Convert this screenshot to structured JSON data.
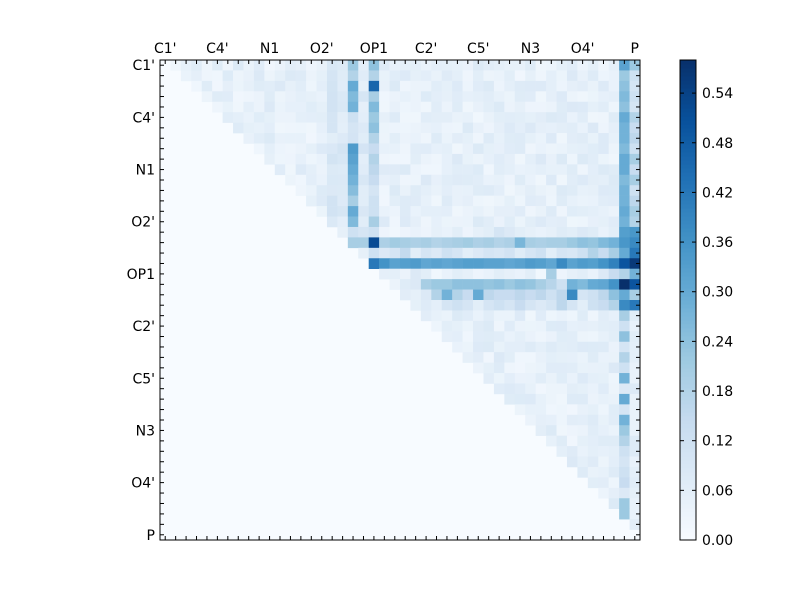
{
  "chart_data": {
    "type": "heatmap",
    "title": "",
    "xlabel": "",
    "ylabel": "",
    "size": 46,
    "x_tick_labels": [
      "C1'",
      "C4'",
      "N1",
      "O2'",
      "OP1",
      "C2'",
      "C5'",
      "N3",
      "O4'",
      "P"
    ],
    "x_tick_indices": [
      0,
      5,
      10,
      15,
      20,
      25,
      30,
      35,
      40,
      45
    ],
    "y_tick_labels": [
      "C1'",
      "C4'",
      "N1",
      "O2'",
      "OP1",
      "C2'",
      "C5'",
      "N3",
      "O4'",
      "P"
    ],
    "y_tick_indices": [
      0,
      5,
      10,
      15,
      20,
      25,
      30,
      35,
      40,
      45
    ],
    "colorbar": {
      "min": 0.0,
      "max": 0.58,
      "tick_labels": [
        "0.00",
        "0.06",
        "0.12",
        "0.18",
        "0.24",
        "0.30",
        "0.36",
        "0.42",
        "0.48",
        "0.54"
      ],
      "tick_values": [
        0.0,
        0.06,
        0.12,
        0.18,
        0.24,
        0.3,
        0.36,
        0.42,
        0.48,
        0.54
      ]
    },
    "colormap": [
      "#f7fbff",
      "#deebf7",
      "#c6dbef",
      "#9ecae1",
      "#6baed6",
      "#4292c6",
      "#2171b5",
      "#08519c",
      "#08306b"
    ],
    "upper_triangular": true,
    "dense_rows": [
      {
        "row": 16,
        "values": [
          0.12,
          0.04,
          0.05,
          0.02,
          0.1,
          0.04,
          0.03,
          0.02,
          0.03,
          0.04,
          0.03,
          0.05,
          0.04,
          0.06,
          0.03,
          0.05,
          0.06,
          0.1,
          0.08,
          0.06,
          0.05,
          0.04,
          0.05,
          0.07,
          0.06,
          0.08,
          0.07,
          0.04,
          0.06,
          0.33,
          0.35
        ]
      },
      {
        "row": 17,
        "values": [
          0.2,
          0.22,
          0.2,
          0.2,
          0.2,
          0.19,
          0.21,
          0.2,
          0.19,
          0.2,
          0.18,
          0.19,
          0.2,
          0.21,
          0.19,
          0.2,
          0.18,
          0.19,
          0.27,
          0.2,
          0.19,
          0.2,
          0.2,
          0.22,
          0.24,
          0.23,
          0.26,
          0.28,
          0.35,
          0.38
        ]
      },
      {
        "row": 18,
        "values": [
          0.05,
          0.12,
          0.08,
          0.1,
          0.15,
          0.06,
          0.1,
          0.08,
          0.12,
          0.1,
          0.06,
          0.08,
          0.1,
          0.09,
          0.11,
          0.07,
          0.1,
          0.12,
          0.06,
          0.1,
          0.09,
          0.12,
          0.18,
          0.14,
          0.2,
          0.3,
          0.42
        ]
      },
      {
        "row": 19,
        "values": [
          0.36,
          0.32,
          0.33,
          0.34,
          0.31,
          0.32,
          0.31,
          0.32,
          0.33,
          0.33,
          0.32,
          0.32,
          0.31,
          0.32,
          0.34,
          0.33,
          0.31,
          0.38,
          0.32,
          0.34,
          0.33,
          0.36,
          0.4,
          0.5,
          0.56
        ]
      },
      {
        "row": 20,
        "values": [
          0.08,
          0.06,
          0.02,
          0.04,
          0.06,
          0.05,
          0.03,
          0.04,
          0.06,
          0.05,
          0.04,
          0.06,
          0.02,
          0.2,
          0.03,
          0.05,
          0.06,
          0.04,
          0.08,
          0.14,
          0.18,
          0.28
        ]
      },
      {
        "row": 21,
        "values": [
          0.2,
          0.22,
          0.22,
          0.24,
          0.24,
          0.24,
          0.23,
          0.24,
          0.22,
          0.24,
          0.23,
          0.2,
          0.17,
          0.12,
          0.28,
          0.26,
          0.3,
          0.31,
          0.36,
          0.58,
          0.5
        ]
      },
      {
        "row": 22,
        "values": [
          0.18,
          0.28,
          0.18,
          0.14,
          0.3,
          0.16,
          0.14,
          0.14,
          0.16,
          0.14,
          0.16,
          0.12,
          0.16,
          0.38,
          0.1,
          0.12,
          0.16,
          0.24,
          0.3,
          0.2
        ]
      },
      {
        "row": 23,
        "values": [
          0.1,
          0.12,
          0.1,
          0.06,
          0.1,
          0.12,
          0.1,
          0.14,
          0.1,
          0.08,
          0.1,
          0.16,
          0.1,
          0.06,
          0.12,
          0.14,
          0.18,
          0.22,
          0.42
        ]
      }
    ],
    "strong_column_values": [
      {
        "col": 44,
        "values": [
          0.32,
          0.22,
          0.24,
          0.26,
          0.24,
          0.3,
          0.28,
          0.28,
          0.26,
          0.3,
          0.3,
          0.26,
          0.28,
          0.28,
          0.3,
          0.28,
          0.33,
          0.35,
          0.3,
          0.5,
          0.18,
          0.56,
          0.28,
          0.38,
          0.2,
          0.12,
          0.24,
          0.1,
          0.18,
          0.12,
          0.28,
          0.08,
          0.3,
          0.1,
          0.28,
          0.22,
          0.18,
          0.12,
          0.1,
          0.12,
          0.14,
          0.08,
          0.22,
          0.22,
          0.3
        ]
      },
      {
        "col": 45,
        "values": [
          0.22,
          0.12,
          0.1,
          0.12,
          0.1,
          0.18,
          0.14,
          0.16,
          0.12,
          0.2,
          0.14,
          0.2,
          0.12,
          0.16,
          0.2,
          0.18,
          0.35,
          0.38,
          0.42,
          0.56,
          0.28,
          0.5,
          0.2,
          0.42,
          0.06,
          0.04,
          0.06,
          0.04,
          0.05,
          0.04,
          0.04,
          0.04,
          0.04,
          0.04,
          0.04,
          0.04,
          0.04,
          0.04,
          0.04,
          0.04,
          0.04,
          0.04,
          0.04,
          0.04,
          0.04,
          0.04
        ]
      },
      {
        "col": 18,
        "values": [
          0.22,
          0.18,
          0.3,
          0.26,
          0.28,
          0.12,
          0.1,
          0.1,
          0.34,
          0.32,
          0.3,
          0.28,
          0.25,
          0.2,
          0.3,
          0.26,
          0.12,
          0.05
        ]
      },
      {
        "col": 20,
        "values": [
          0.24,
          0.18,
          0.46,
          0.2,
          0.26,
          0.22,
          0.24,
          0.18,
          0.14,
          0.18,
          0.16,
          0.14,
          0.1,
          0.12,
          0.12,
          0.2,
          0.12,
          0.52,
          0.05,
          0.42
        ]
      }
    ]
  }
}
